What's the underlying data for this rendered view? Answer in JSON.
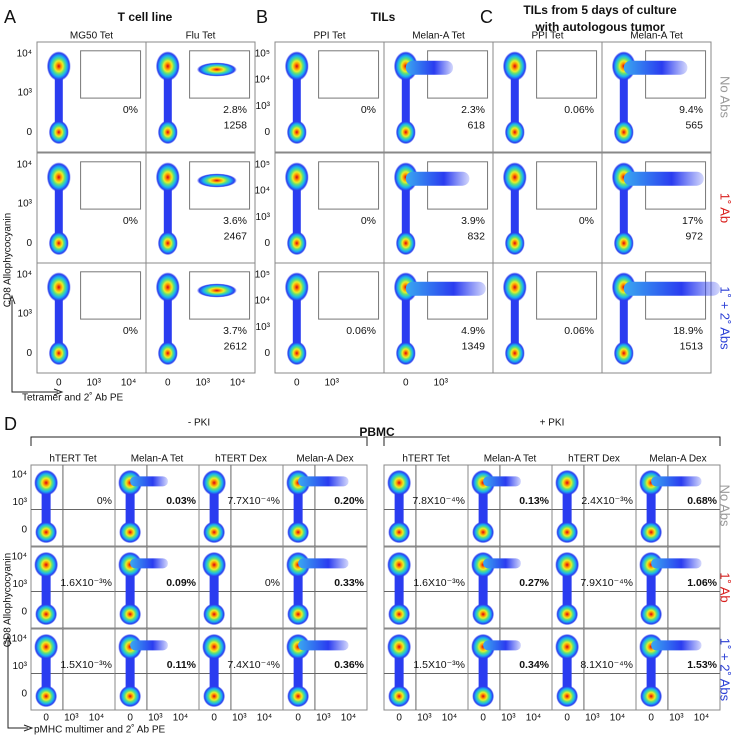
{
  "panels": [
    {
      "letter": "A",
      "title": [
        "T cell line"
      ],
      "columns": [
        "MG50 Tet",
        "Flu Tet"
      ],
      "rows": [
        [
          {
            "percent": "0%"
          },
          {
            "percent": "2.8%",
            "count": "1258"
          }
        ],
        [
          {
            "percent": "0%"
          },
          {
            "percent": "3.6%",
            "count": "2467"
          }
        ],
        [
          {
            "percent": "0%"
          },
          {
            "percent": "3.7%",
            "count": "2612"
          }
        ]
      ],
      "y_ticks": [
        "10⁴",
        "10³",
        "0"
      ],
      "x_ticks": [
        "0",
        "10³",
        "10⁴"
      ]
    },
    {
      "letter": "B",
      "title": [
        "TILs"
      ],
      "columns": [
        "PPI Tet",
        "Melan-A Tet"
      ],
      "rows": [
        [
          {
            "percent": "0%"
          },
          {
            "percent": "2.3%",
            "count": "618"
          }
        ],
        [
          {
            "percent": "0%"
          },
          {
            "percent": "3.9%",
            "count": "832"
          }
        ],
        [
          {
            "percent": "0.06%"
          },
          {
            "percent": "4.9%",
            "count": "1349"
          }
        ]
      ],
      "y_ticks": [
        "10⁵",
        "10⁴",
        "10³",
        "0"
      ],
      "x_ticks": [
        "0",
        "10³"
      ]
    },
    {
      "letter": "C",
      "title": [
        "TILs from 5 days of culture",
        "with autologous tumor"
      ],
      "columns": [
        "PPI Tet",
        "Melan-A Tet"
      ],
      "rows": [
        [
          {
            "percent": "0.06%"
          },
          {
            "percent": "9.4%",
            "count": "565"
          }
        ],
        [
          {
            "percent": "0%"
          },
          {
            "percent": "17%",
            "count": "972"
          }
        ],
        [
          {
            "percent": "0.06%"
          },
          {
            "percent": "18.9%",
            "count": "1513"
          }
        ]
      ]
    }
  ],
  "row_labels": [
    "No Abs",
    "1˚ Ab",
    "1˚ + 2˚ Abs"
  ],
  "top_y_axis_label": "CD8 Allophycocyanin",
  "top_x_axis_label": "Tetramer and 2˚ Ab PE",
  "panel_d": {
    "letter": "D",
    "title": "PBMC",
    "groups": [
      {
        "label": "- PKI",
        "columns": [
          "hTERT Tet",
          "Melan-A Tet",
          "hTERT Dex",
          "Melan-A Dex"
        ],
        "rows": [
          [
            "0%",
            "0.03%",
            "7.7X10⁻⁴%",
            "0.20%"
          ],
          [
            "1.6X10⁻³%",
            "0.09%",
            "0%",
            "0.33%"
          ],
          [
            "1.5X10⁻³%",
            "0.11%",
            "7.4X10⁻⁴%",
            "0.36%"
          ]
        ]
      },
      {
        "label": "+ PKI",
        "columns": [
          "hTERT Tet",
          "Melan-A Tet",
          "hTERT Dex",
          "Melan-A Dex"
        ],
        "rows": [
          [
            "7.8X10⁻⁴%",
            "0.13%",
            "2.4X10⁻³%",
            "0.68%"
          ],
          [
            "1.6X10⁻³%",
            "0.27%",
            "7.9X10⁻⁴%",
            "1.06%"
          ],
          [
            "1.5X10⁻³%",
            "0.34%",
            "8.1X10⁻⁴%",
            "1.53%"
          ]
        ]
      }
    ],
    "y_ticks": [
      "10⁴",
      "10³",
      "0"
    ],
    "x_ticks": [
      "0",
      "10³",
      "10⁴"
    ],
    "y_axis_label": "CD8 Allophycocyanin",
    "x_axis_label": "pMHC multimer and 2˚ Ab PE"
  }
}
